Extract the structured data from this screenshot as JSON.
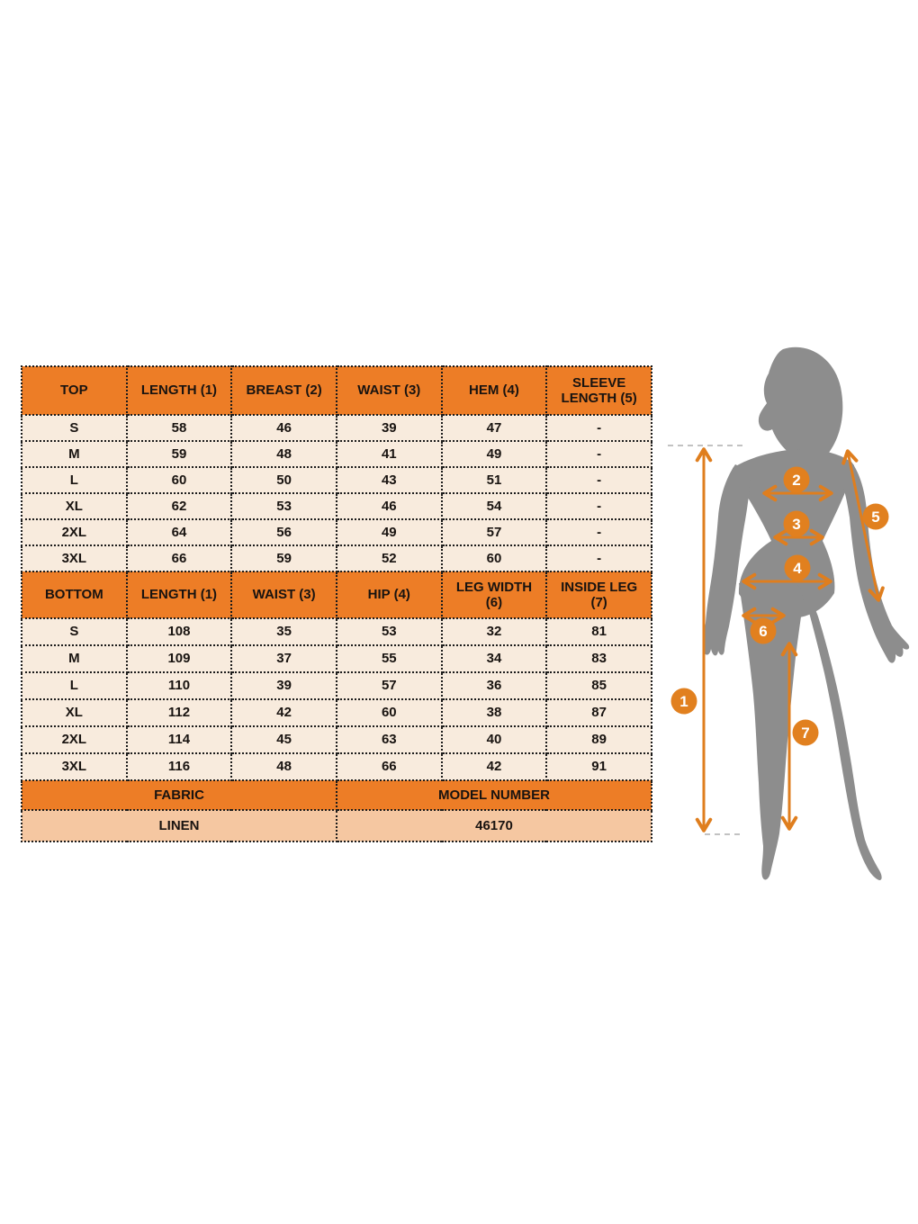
{
  "colors": {
    "header_bg": "#ED7D26",
    "row_bg": "#F8EBDD",
    "footer_value_bg": "#F5C7A1",
    "accent_arrow": "#DF7E1E",
    "figure_gray": "#8D8D8D",
    "border": "#1B1B1B"
  },
  "chart_data": [
    {
      "type": "table",
      "title": "TOP",
      "columns": [
        "TOP",
        "LENGTH (1)",
        "BREAST (2)",
        "WAIST (3)",
        "HEM (4)",
        "SLEEVE LENGTH (5)"
      ],
      "rows": [
        [
          "S",
          "58",
          "46",
          "39",
          "47",
          "-"
        ],
        [
          "M",
          "59",
          "48",
          "41",
          "49",
          "-"
        ],
        [
          "L",
          "60",
          "50",
          "43",
          "51",
          "-"
        ],
        [
          "XL",
          "62",
          "53",
          "46",
          "54",
          "-"
        ],
        [
          "2XL",
          "64",
          "56",
          "49",
          "57",
          "-"
        ],
        [
          "3XL",
          "66",
          "59",
          "52",
          "60",
          "-"
        ]
      ]
    },
    {
      "type": "table",
      "title": "BOTTOM",
      "columns": [
        "BOTTOM",
        "LENGTH (1)",
        "WAIST (3)",
        "HIP (4)",
        "LEG WIDTH (6)",
        "INSIDE LEG (7)"
      ],
      "rows": [
        [
          "S",
          "108",
          "35",
          "53",
          "32",
          "81"
        ],
        [
          "M",
          "109",
          "37",
          "55",
          "34",
          "83"
        ],
        [
          "L",
          "110",
          "39",
          "57",
          "36",
          "85"
        ],
        [
          "XL",
          "112",
          "42",
          "60",
          "38",
          "87"
        ],
        [
          "2XL",
          "114",
          "45",
          "63",
          "40",
          "89"
        ],
        [
          "3XL",
          "116",
          "48",
          "66",
          "42",
          "91"
        ]
      ]
    },
    {
      "type": "table",
      "title": "FABRIC / MODEL NUMBER",
      "columns": [
        "FABRIC",
        "MODEL NUMBER"
      ],
      "rows": [
        [
          "LINEN",
          "46170"
        ]
      ]
    }
  ],
  "figure": {
    "markers": [
      {
        "n": "1"
      },
      {
        "n": "2"
      },
      {
        "n": "3"
      },
      {
        "n": "4"
      },
      {
        "n": "5"
      },
      {
        "n": "6"
      },
      {
        "n": "7"
      }
    ]
  }
}
